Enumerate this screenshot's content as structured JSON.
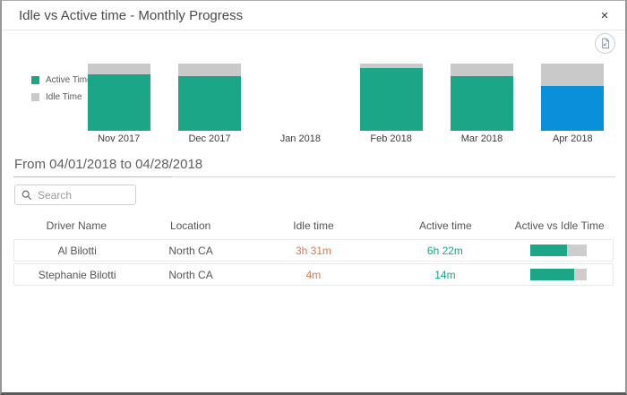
{
  "dialog": {
    "title": "Idle vs Active time - Monthly Progress",
    "close_label": "×"
  },
  "toolbar": {
    "export_icon": "export-image-icon"
  },
  "chart_data": {
    "type": "bar",
    "subtype": "stacked-percent-column",
    "categories": [
      "Nov 2017",
      "Dec 2017",
      "Jan 2018",
      "Feb 2018",
      "Mar 2018",
      "Apr 2018"
    ],
    "series": [
      {
        "name": "Active Time",
        "values": [
          84,
          81,
          null,
          93,
          81,
          67
        ]
      },
      {
        "name": "Idle Time",
        "values": [
          16,
          19,
          null,
          7,
          19,
          33
        ]
      }
    ],
    "selected_category": "Apr 2018",
    "ylim": [
      0,
      100
    ],
    "grid": false,
    "legend_position": "left",
    "colors": {
      "active": "#1aa687",
      "idle": "#c9c9c9",
      "selected_active": "#0a90db"
    }
  },
  "date_range": {
    "label": "From 04/01/2018 to 04/28/2018"
  },
  "search": {
    "placeholder": "Search",
    "value": "",
    "icon": "search-icon"
  },
  "table": {
    "columns": [
      "Driver Name",
      "Location",
      "Idle time",
      "Active time",
      "Active vs Idle Time"
    ],
    "rows": [
      {
        "driver": "Al Bilotti",
        "location": "North CA",
        "idle": "3h 31m",
        "active": "6h 22m",
        "active_pct": 64
      },
      {
        "driver": "Stephanie Bilotti",
        "location": "North CA",
        "idle": "4m",
        "active": "14m",
        "active_pct": 78
      }
    ]
  }
}
